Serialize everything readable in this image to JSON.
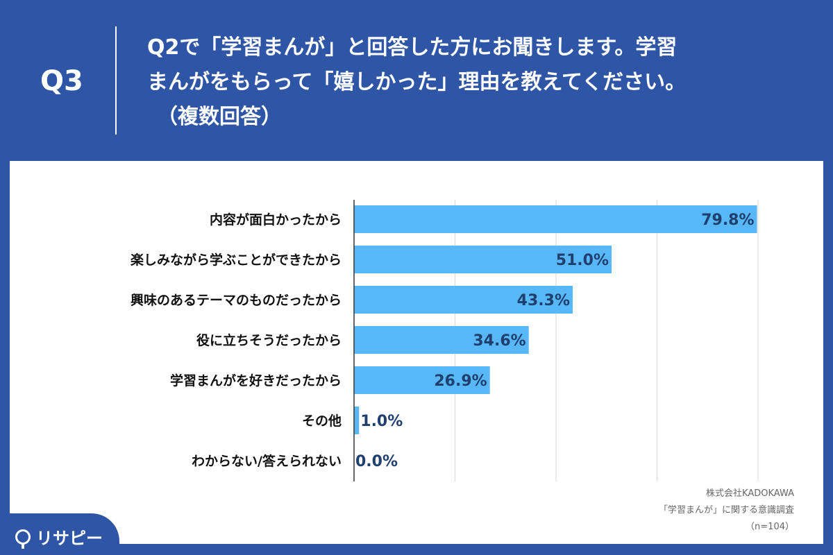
{
  "header": {
    "q_label": "Q3",
    "question_line1": "Q2で「学習まんが」と回答した方にお聞きします。学習",
    "question_line2": "まんがをもらって「嬉しかった」理由を教えてください。",
    "question_line3": "（複数回答）"
  },
  "source": {
    "line1": "株式会社KADOKAWA",
    "line2": "「学習まんが」に関する意識調査",
    "line3": "（n=104）"
  },
  "logo": {
    "text": "リサピー",
    "icon": "pin-icon"
  },
  "colors": {
    "bar": "#58b8f7",
    "header_bg": "#2f56a6",
    "grid": "#d9d9d9",
    "value_text": "#1f3f6e"
  },
  "chart_data": {
    "type": "bar",
    "orientation": "horizontal",
    "categories": [
      "内容が面白かったから",
      "楽しみながら学ぶことができたから",
      "興味のあるテーマのものだったから",
      "役に立ちそうだったから",
      "学習まんがを好きだったから",
      "その他",
      "わからない/答えられない"
    ],
    "values": [
      79.8,
      51.0,
      43.3,
      34.6,
      26.9,
      1.0,
      0.0
    ],
    "value_labels": [
      "79.8%",
      "51.0%",
      "43.3%",
      "34.6%",
      "26.9%",
      "1.0%",
      "0.0%"
    ],
    "xlim": [
      0,
      80
    ],
    "grid": true,
    "unit": "%"
  }
}
